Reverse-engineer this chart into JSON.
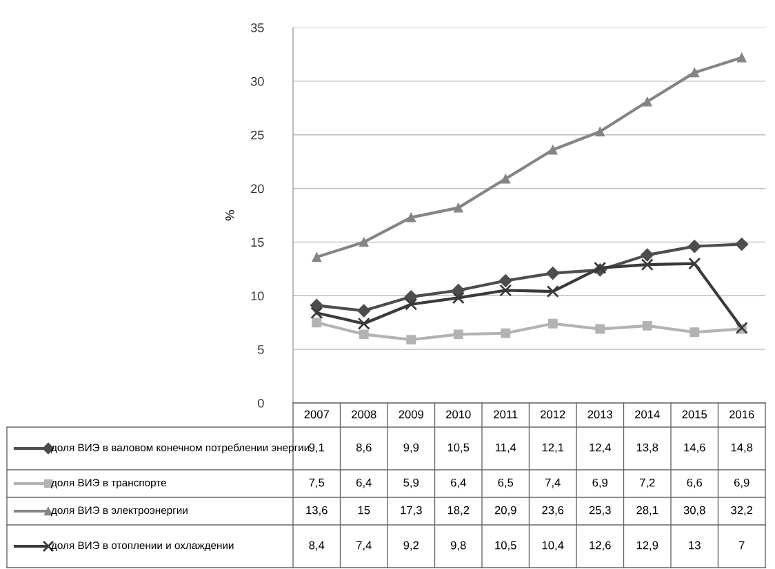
{
  "chart_data": {
    "type": "line",
    "ylabel": "%",
    "categories": [
      "2007",
      "2008",
      "2009",
      "2010",
      "2011",
      "2012",
      "2013",
      "2014",
      "2015",
      "2016"
    ],
    "series": [
      {
        "name": "доля ВИЭ в валовом конечном потреблении энергии",
        "color": "#4d4d4d",
        "marker": "diamond",
        "values": [
          9.1,
          8.6,
          9.9,
          10.5,
          11.4,
          12.1,
          12.4,
          13.8,
          14.6,
          14.8
        ],
        "value_labels": [
          "9,1",
          "8,6",
          "9,9",
          "10,5",
          "11,4",
          "12,1",
          "12,4",
          "13,8",
          "14,6",
          "14,8"
        ]
      },
      {
        "name": "доля ВИЭ в транспорте",
        "color": "#b3b3b3",
        "marker": "square",
        "values": [
          7.5,
          6.4,
          5.9,
          6.4,
          6.5,
          7.4,
          6.9,
          7.2,
          6.6,
          6.9
        ],
        "value_labels": [
          "7,5",
          "6,4",
          "5,9",
          "6,4",
          "6,5",
          "7,4",
          "6,9",
          "7,2",
          "6,6",
          "6,9"
        ]
      },
      {
        "name": "доля ВИЭ в электроэнергии",
        "color": "#858585",
        "marker": "triangle",
        "values": [
          13.6,
          15,
          17.3,
          18.2,
          20.9,
          23.6,
          25.3,
          28.1,
          30.8,
          32.2
        ],
        "value_labels": [
          "13,6",
          "15",
          "17,3",
          "18,2",
          "20,9",
          "23,6",
          "25,3",
          "28,1",
          "30,8",
          "32,2"
        ]
      },
      {
        "name": "доля ВИЭ в отоплении и охлаждении",
        "color": "#3a3a3a",
        "marker": "cross",
        "values": [
          8.4,
          7.4,
          9.2,
          9.8,
          10.5,
          10.4,
          12.6,
          12.9,
          13,
          7
        ],
        "value_labels": [
          "8,4",
          "7,4",
          "9,2",
          "9,8",
          "10,5",
          "10,4",
          "12,6",
          "12,9",
          "13",
          "7"
        ]
      }
    ],
    "ylim": [
      0,
      35
    ],
    "yticks": [
      0,
      5,
      10,
      15,
      20,
      25,
      30,
      35
    ],
    "grid": "y",
    "legend": "bottom",
    "tick_labels": "y",
    "line_style": "solid"
  }
}
